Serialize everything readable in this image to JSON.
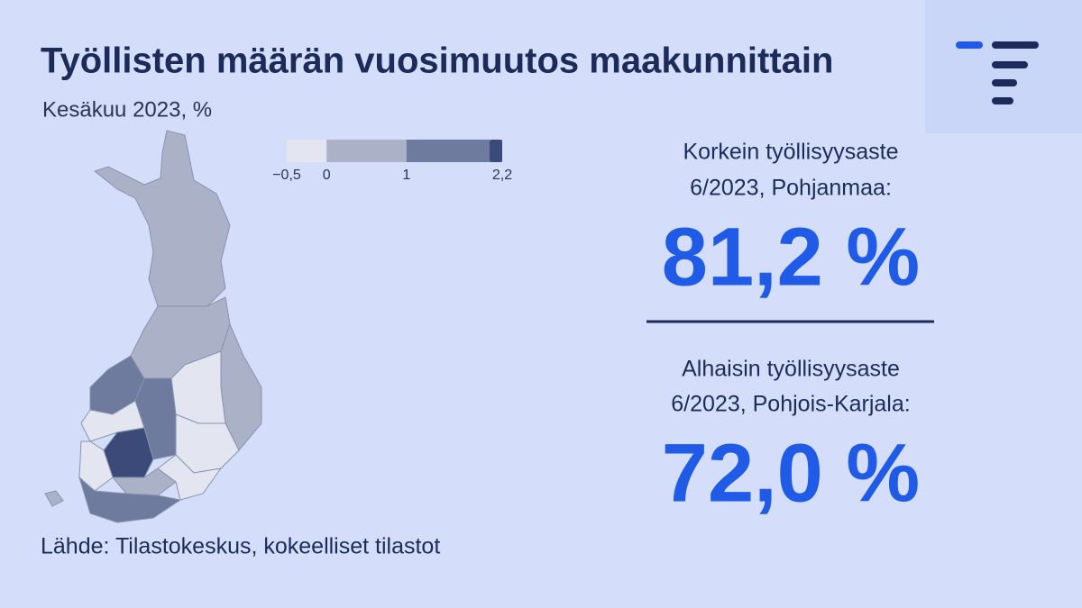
{
  "title": "Työllisten määrän vuosimuutos maakunnittain",
  "subtitle": "Kesäkuu 2023, %",
  "legend": {
    "ticks": [
      {
        "value": -0.5,
        "label": "−0,5"
      },
      {
        "value": 0,
        "label": "0"
      },
      {
        "value": 1,
        "label": "1"
      },
      {
        "value": 2.2,
        "label": "2,2"
      }
    ],
    "colors": [
      "#e3e6f0",
      "#abb2c8",
      "#6e7b9e",
      "#3b4a78"
    ]
  },
  "highest": {
    "label": [
      "Korkein työllisyysaste",
      "6/2023, Pohjanmaa:"
    ],
    "value": "81,2 %"
  },
  "lowest": {
    "label": [
      "Alhaisin työllisyysaste",
      "6/2023, Pohjois-Karjala:"
    ],
    "value": "72,0 %"
  },
  "source": "Lähde: Tilastokeskus, kokeelliset tilastot"
}
